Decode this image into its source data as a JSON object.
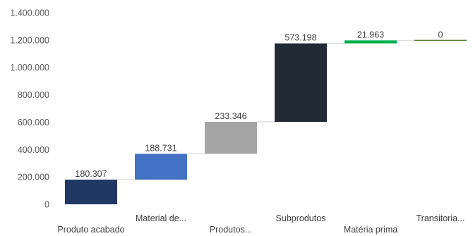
{
  "chart_data": {
    "type": "waterfall",
    "categories": [
      "Produto acabado",
      "Material de...",
      "Produtos...",
      "Subprodutos",
      "Matéria prima",
      "Transitoria..."
    ],
    "values": [
      180307,
      188731,
      233346,
      573198,
      21963,
      0
    ],
    "data_labels": [
      "180.307",
      "188.731",
      "233.346",
      "573.198",
      "21.963",
      "0"
    ],
    "yticks": [
      "0",
      "200.000",
      "400.000",
      "600.000",
      "800.000",
      "1.000.000",
      "1.200.000",
      "1.400.000"
    ],
    "ylim": [
      0,
      1400000
    ],
    "grid": false,
    "legend": "none",
    "colors": [
      "#203864",
      "#4472C4",
      "#A5A5A5",
      "#222A35",
      "#00B050",
      "#548235"
    ],
    "connector_color": "#D9D9D9"
  }
}
